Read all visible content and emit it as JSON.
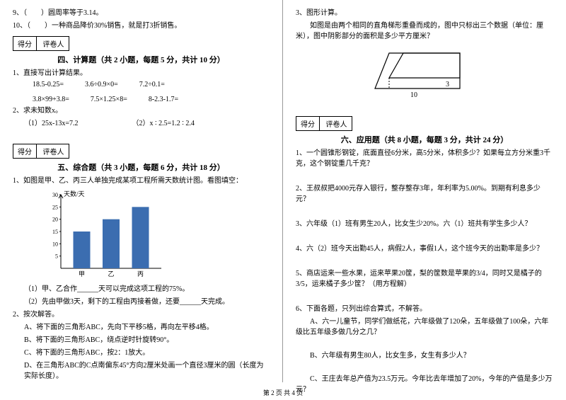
{
  "left": {
    "q9": "9、（　　）圆周率等于3.14。",
    "q10": "10、（　　）一种商品降价30%销售，就是打3折销售。",
    "score_label1": "得分",
    "score_label2": "评卷人",
    "section4": "四、计算题（共 2 小题，每题 5 分，共计 10 分）",
    "s4_q1": "1、直接写出计算结果。",
    "s4_r1a": "18.5-0.25=",
    "s4_r1b": "3.6÷0.9×0=",
    "s4_r1c": "7.2÷0.1=",
    "s4_r2a": "3.8×99+3.8=",
    "s4_r2b": "7.5×1.25×8=",
    "s4_r2c": "8-2.3-1.7=",
    "s4_q2": "2、求未知数x。",
    "s4_q2a": "（1）25x-13x=7.2",
    "s4_q2b": "（2）x ∶ 2.5=1.2 ∶ 2.4",
    "section5": "五、综合题（共 3 小题，每题 6 分，共计 18 分）",
    "s5_q1": "1、如图是甲、乙、丙三人单独完成某项工程所需天数统计图。看图填空：",
    "chart": {
      "ylabel": "天数/天",
      "yticks": [
        "5",
        "10",
        "15",
        "20",
        "25",
        "30"
      ],
      "yvals": [
        5,
        10,
        15,
        20,
        25,
        30
      ],
      "cats": [
        "甲",
        "乙",
        "丙"
      ],
      "values": [
        15,
        20,
        25
      ],
      "bar_color": "#3b6db0",
      "axis_color": "#000000",
      "bg": "#ffffff"
    },
    "s5_q1a": "（1）甲、乙合作______天可以完成这项工程的75%。",
    "s5_q1b": "（2）先由甲做3天，剩下的工程由丙接着做，还要______天完成。",
    "s5_q2": "2、按次解答。",
    "s5_q2a": "A、将下面的三角形ABC，先向下平移5格，再向左平移4格。",
    "s5_q2b": "B、将下面的三角形ABC，绕点逆时针旋转90°。",
    "s5_q2c": "C、将下面的三角形ABC，按2：1放大。",
    "s5_q2d": "D、在三角形ABC的C点南偏东45°方向2厘米处画一个直径3厘米的圆（长度为实际长度）。"
  },
  "right": {
    "s5_q3": "3、图形计算。",
    "s5_q3t": "　　如图是由两个相同的直角梯形重叠而成的，图中只标出三个数据（单位：厘米），图中阴影部分的面积是多少平方厘米？",
    "shape": {
      "w10": "10",
      "w3": "3",
      "stroke": "#000000"
    },
    "score_label1": "得分",
    "score_label2": "评卷人",
    "section6": "六、应用题（共 8 小题，每题 3 分，共计 24 分）",
    "s6_q1": "1、一个圆锥形钢锭，底面直径6分米，高5分米，体积多少？如果每立方分米重3千克，这个钢锭重几千克？",
    "s6_q2": "2、王叔叔把4000元存入银行，整存整存3年，年利率为5.00%。到期有利息多少元？",
    "s6_q3": "3、六年级（1）班有男生20人，比女生少20%。六（1）班共有学生多少人？",
    "s6_q4": "4、六（2）班今天出勤45人，病假2人，事假1人，这个班今天的出勤率是多少？",
    "s6_q5": "5、商店运来一些水果，运来苹果20筐，梨的筐数是苹果的3/4，同时又是橘子的3/5，运来橘子多少筐？（用方程解）",
    "s6_q6": "6、下面各题，只列出综合算式，不解答。",
    "s6_q6a": "　　A、六一儿童节，同学们做纸花，六年级做了120朵，五年级做了100朵，六年级比五年级多做几分之几？",
    "s6_q6b": "　　B、六年级有男生80人，比女生多，女生有多少人？",
    "s6_q6c": "　　C、王庄去年总产值为23.5万元。今年比去年增加了20%，今年的产值是多少万元？"
  },
  "footer": "第 2 页 共 4 页"
}
